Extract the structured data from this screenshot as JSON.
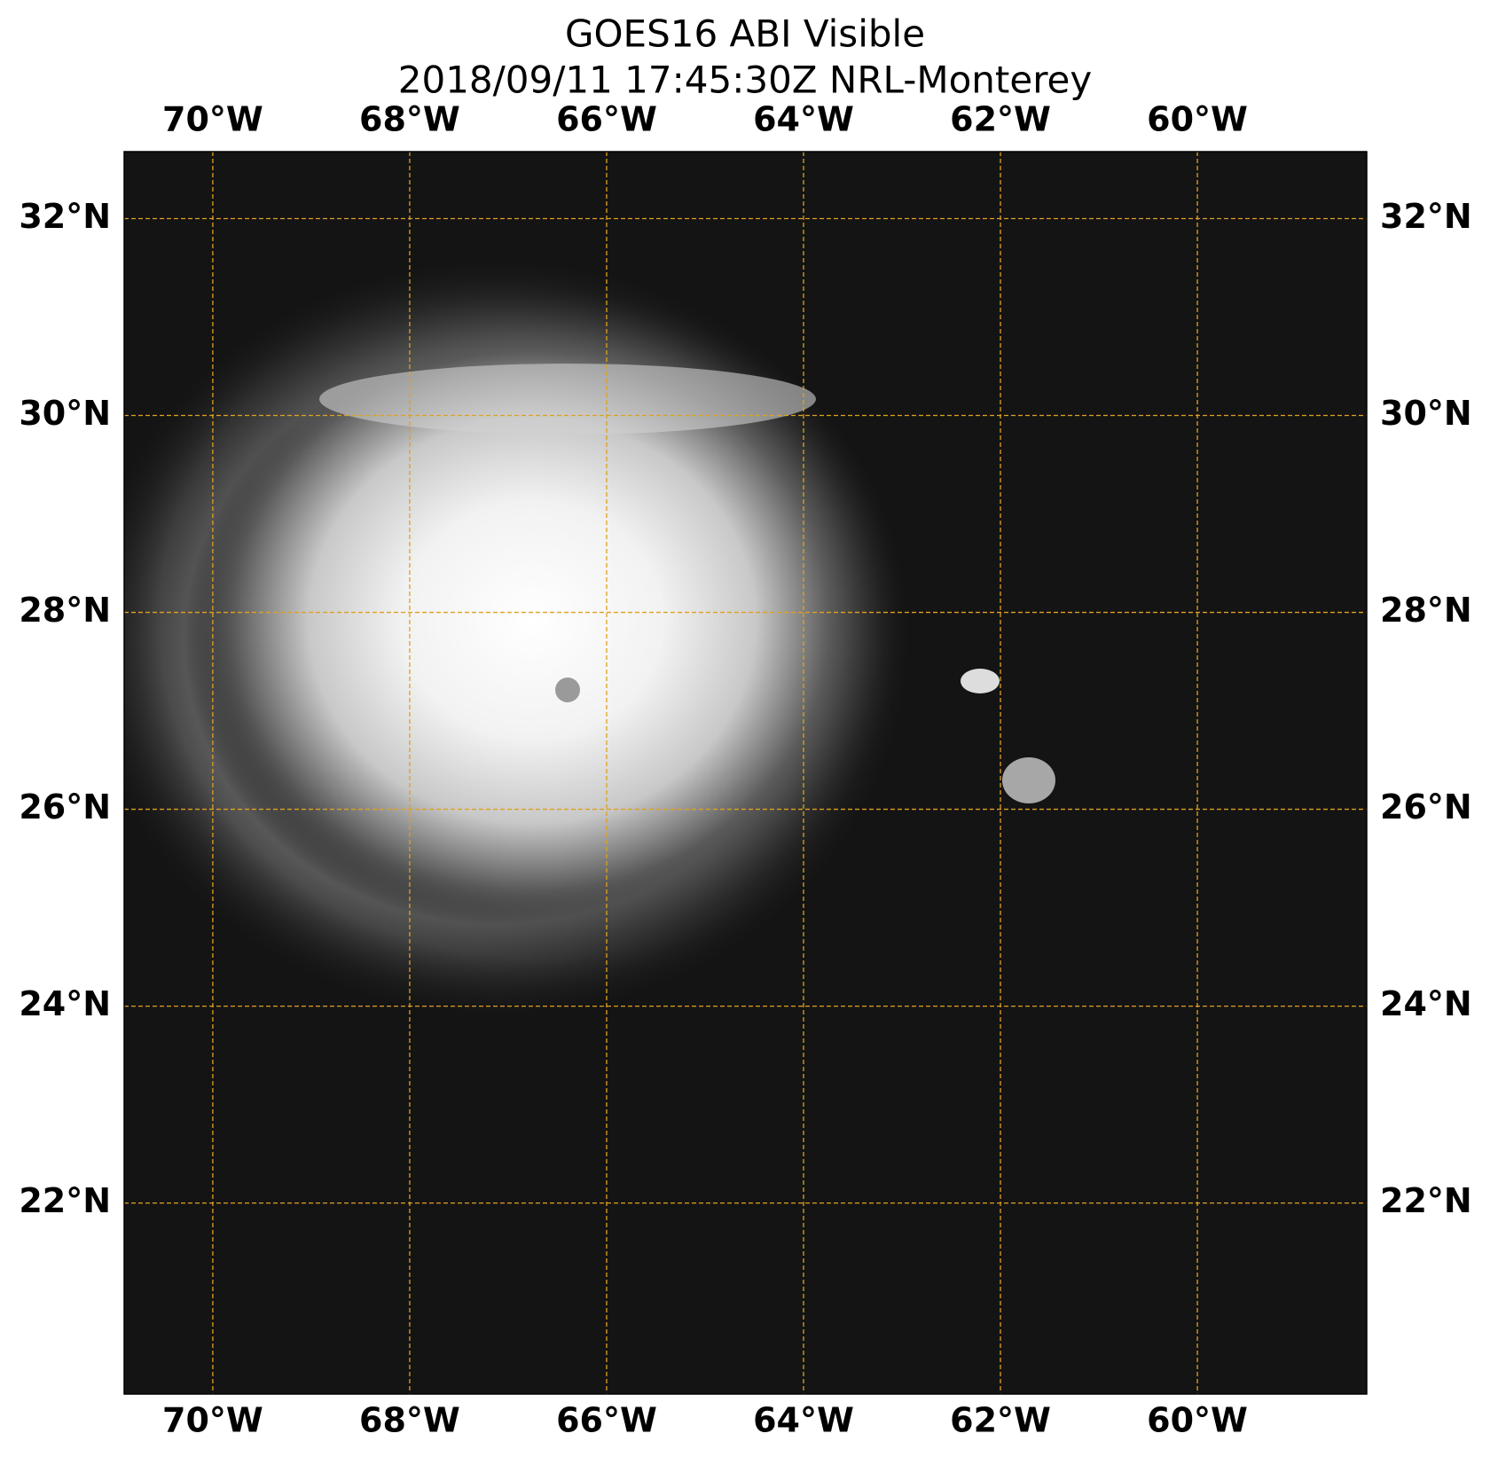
{
  "map": {
    "title": "GOES16 ABI Visible",
    "subtitle": "2018/09/11 17:45:30Z NRL-Monterey",
    "lonlim": [
      -70.9,
      -58.28
    ],
    "latlim": [
      20.06,
      32.68
    ],
    "lon_ticks": [
      {
        "value": -70,
        "label": "70°W"
      },
      {
        "value": -68,
        "label": "68°W"
      },
      {
        "value": -66,
        "label": "66°W"
      },
      {
        "value": -64,
        "label": "64°W"
      },
      {
        "value": -62,
        "label": "62°W"
      },
      {
        "value": -60,
        "label": "60°W"
      }
    ],
    "lat_ticks": [
      {
        "value": 32,
        "label": "32°N"
      },
      {
        "value": 30,
        "label": "30°N"
      },
      {
        "value": 28,
        "label": "28°N"
      },
      {
        "value": 26,
        "label": "26°N"
      },
      {
        "value": 24,
        "label": "24°N"
      },
      {
        "value": 22,
        "label": "22°N"
      }
    ],
    "grid_color": "#e0a020"
  }
}
